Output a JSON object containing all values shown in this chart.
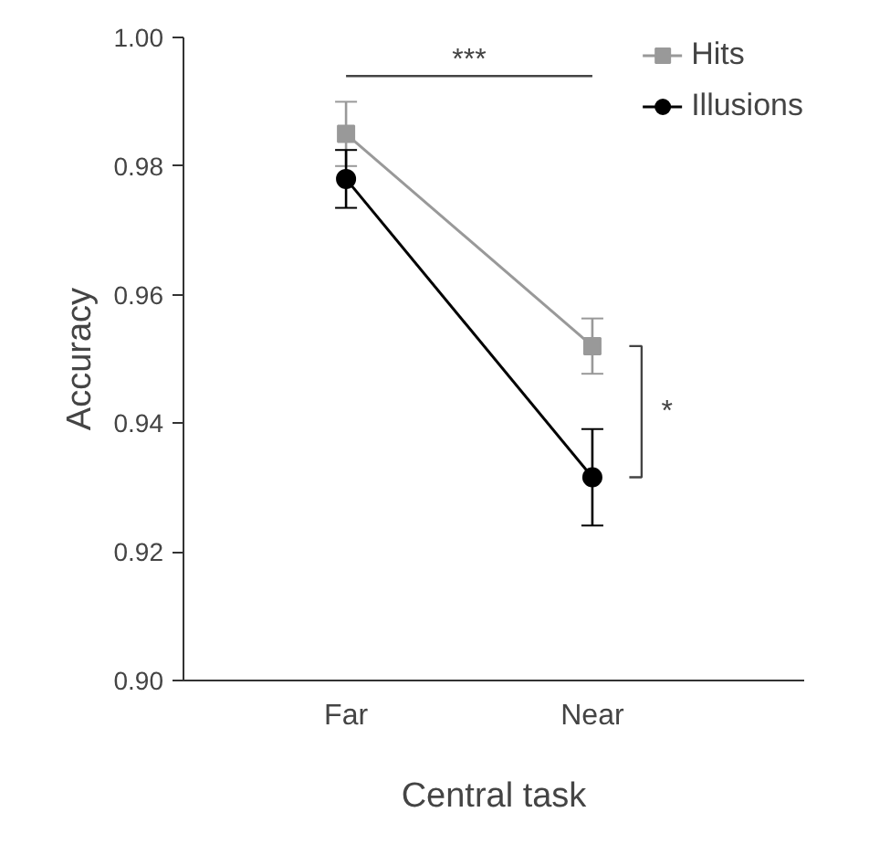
{
  "chart_data": {
    "type": "line",
    "xlabel": "Central task",
    "ylabel": "Accuracy",
    "categories": [
      "Far",
      "Near"
    ],
    "series": [
      {
        "name": "Hits",
        "color": "#999999",
        "marker": "square",
        "values": [
          0.985,
          0.952
        ],
        "errors": [
          0.005,
          0.0043
        ]
      },
      {
        "name": "Illusions",
        "color": "#000000",
        "marker": "circle",
        "values": [
          0.978,
          0.9316
        ],
        "errors": [
          0.0045,
          0.0075
        ]
      }
    ],
    "ylim": [
      0.9,
      1.0
    ],
    "yticks": [
      {
        "value": 0.9,
        "label": "0.90"
      },
      {
        "value": 0.92,
        "label": "0.92"
      },
      {
        "value": 0.94,
        "label": "0.94"
      },
      {
        "value": 0.96,
        "label": "0.96"
      },
      {
        "value": 0.98,
        "label": "0.98"
      },
      {
        "value": 1.0,
        "label": "1.00"
      }
    ],
    "annotations": [
      "***",
      "*"
    ],
    "legend": "top right",
    "grid": false,
    "line_style": "solid"
  }
}
